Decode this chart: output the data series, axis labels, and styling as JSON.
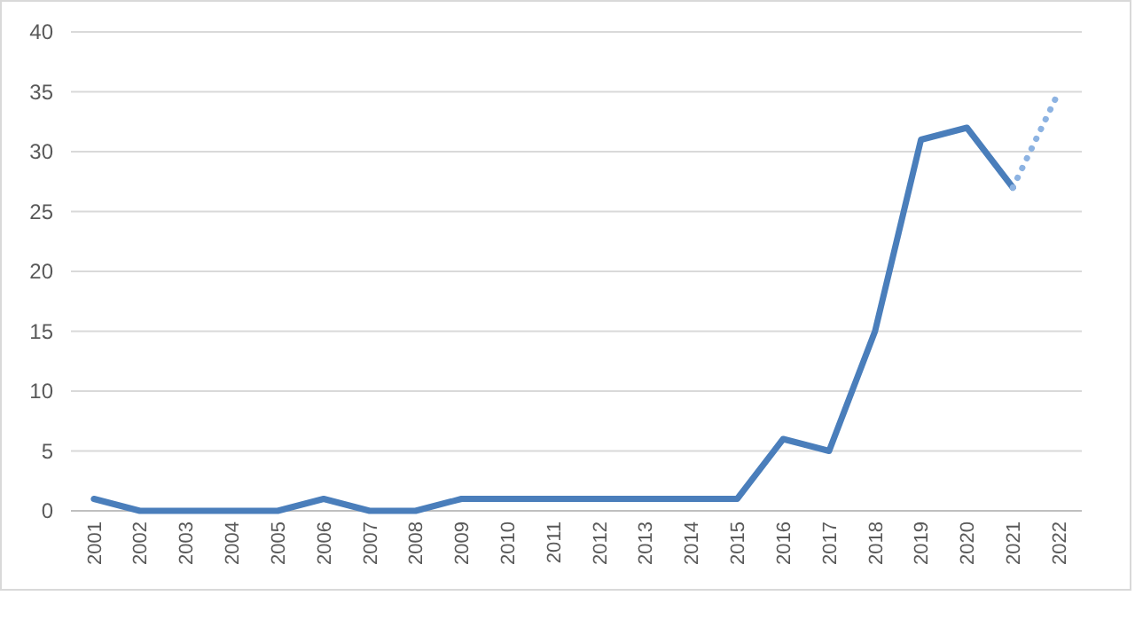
{
  "chart_data": {
    "type": "line",
    "categories": [
      "2001",
      "2002",
      "2003",
      "2004",
      "2005",
      "2006",
      "2007",
      "2008",
      "2009",
      "2010",
      "2011",
      "2012",
      "2013",
      "2014",
      "2015",
      "2016",
      "2017",
      "2018",
      "2019",
      "2020",
      "2021",
      "2022"
    ],
    "series": [
      {
        "color": "#4a7ebb",
        "values": [
          1,
          0,
          0,
          0,
          0,
          1,
          0,
          0,
          1,
          1,
          1,
          1,
          1,
          1,
          1,
          6,
          5,
          15,
          31,
          32,
          27,
          null
        ]
      },
      {
        "color": "#8db3e2",
        "line_style": "dotted",
        "values": [
          null,
          null,
          null,
          null,
          null,
          null,
          null,
          null,
          null,
          null,
          null,
          null,
          null,
          null,
          null,
          null,
          null,
          null,
          null,
          null,
          27,
          35
        ]
      }
    ],
    "ylim": [
      0,
      40
    ],
    "yticks": [
      0,
      5,
      10,
      15,
      20,
      25,
      30,
      35,
      40
    ],
    "grid": "y",
    "marker": "none"
  }
}
